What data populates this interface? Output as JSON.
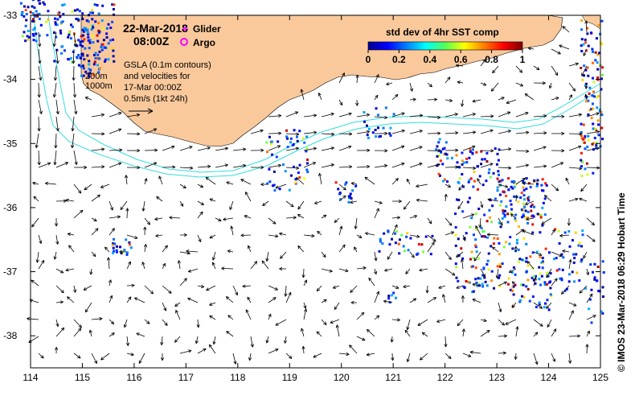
{
  "header": {
    "date": "22-Mar-2018",
    "time": "08:00Z"
  },
  "legend": {
    "glider_label": "Glider",
    "argo_label": "Argo",
    "glider_color": "#ff22ff",
    "argo_color": "#ff00ff"
  },
  "annotations": {
    "depth_200": "200m",
    "depth_1000": "1000m",
    "gsla_line1": "GSLA (0.1m contours)",
    "gsla_line2": "and velocities for",
    "gsla_line3": "17-Mar 00:00Z",
    "gsla_line4": "0.5m/s (1kt 24h)"
  },
  "colorbar": {
    "title": "std dev of 4hr SST comp",
    "ticks": [
      "0",
      "0.2",
      "0.4",
      "0.6",
      "0.8",
      "1"
    ],
    "colormap": "jet"
  },
  "axes": {
    "x_ticks": [
      "114",
      "115",
      "116",
      "117",
      "118",
      "119",
      "120",
      "121",
      "122",
      "123",
      "124",
      "125"
    ],
    "y_ticks": [
      "-33",
      "-34",
      "-35",
      "-36",
      "-37",
      "-38"
    ],
    "lon_range": [
      114,
      125
    ],
    "lat_range": [
      -38.5,
      -33
    ]
  },
  "credit": "© IMOS 23-Mar-2018 06:29 Hobart Time",
  "colors": {
    "land": "#f9c99c",
    "contour": "#33dddd",
    "sst_low": "#1a2fcf",
    "sst_high": "#cc1a1a"
  }
}
